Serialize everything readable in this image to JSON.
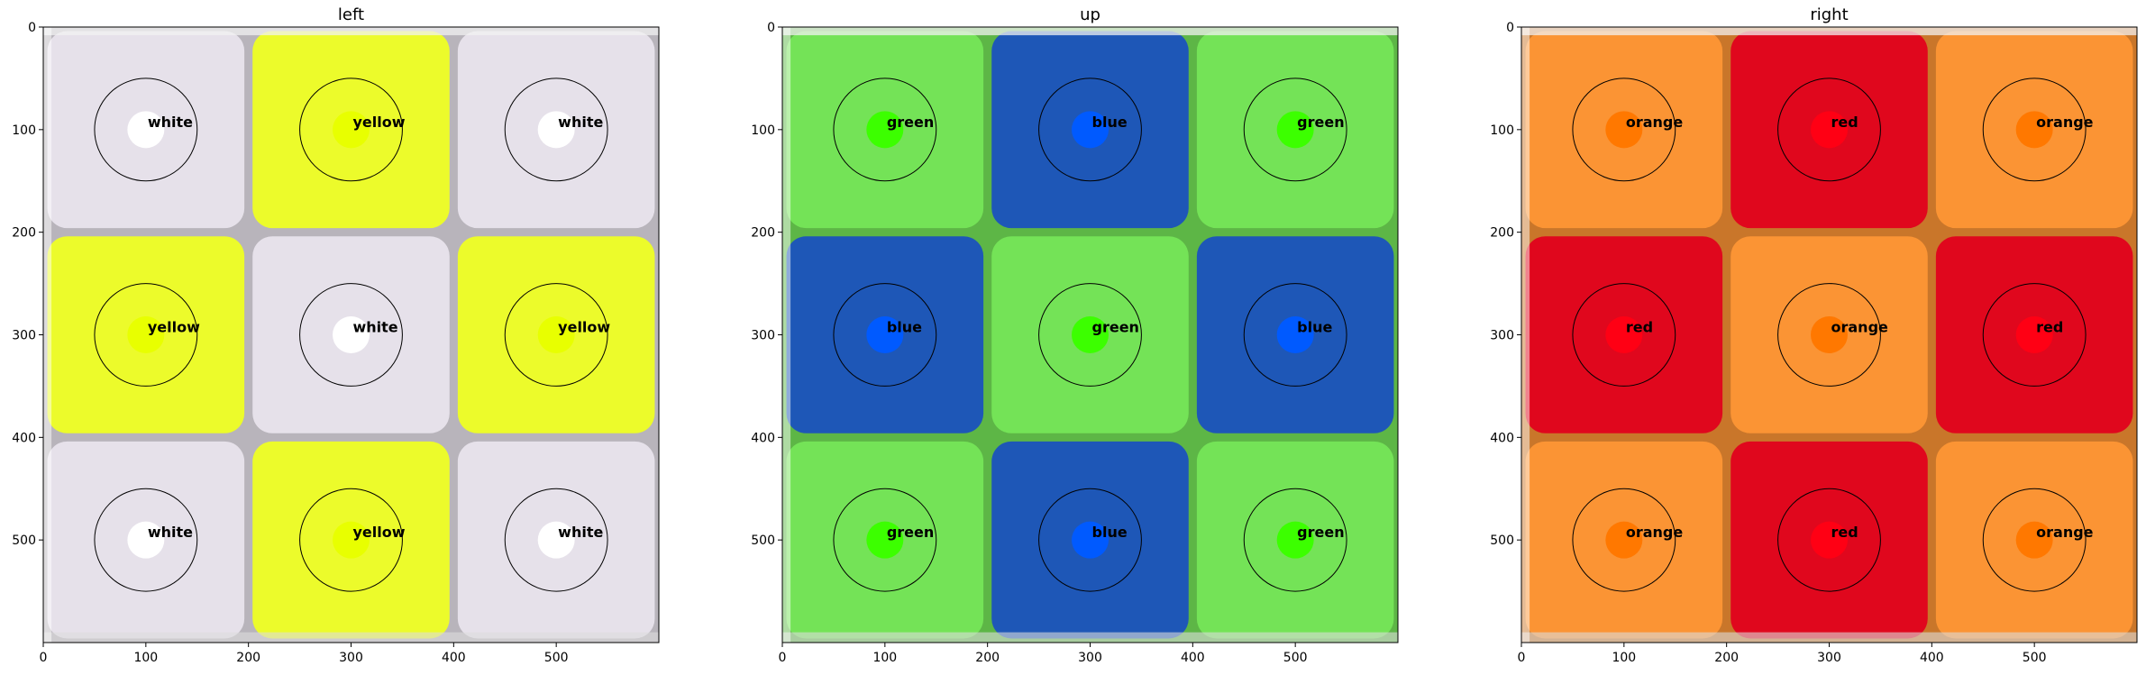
{
  "figure": {
    "background": "#ffffff"
  },
  "chart_data": [
    {
      "type": "image_grid",
      "title": "left",
      "xlim": [
        0,
        600
      ],
      "ylim": [
        600,
        0
      ],
      "xticks": [
        0,
        100,
        200,
        300,
        400,
        500
      ],
      "yticks": [
        0,
        100,
        200,
        300,
        400,
        500
      ],
      "grid": false,
      "cells": [
        {
          "row": 0,
          "col": 0,
          "x": 100,
          "y": 100,
          "label": "white",
          "sticker_color": "#e6e1ea",
          "marker_color": "#ffffff"
        },
        {
          "row": 0,
          "col": 1,
          "x": 300,
          "y": 100,
          "label": "yellow",
          "sticker_color": "#ecfb2b",
          "marker_color": "#e8ff00"
        },
        {
          "row": 0,
          "col": 2,
          "x": 500,
          "y": 100,
          "label": "white",
          "sticker_color": "#e6e1ea",
          "marker_color": "#ffffff"
        },
        {
          "row": 1,
          "col": 0,
          "x": 100,
          "y": 300,
          "label": "yellow",
          "sticker_color": "#ecfb2b",
          "marker_color": "#e8ff00"
        },
        {
          "row": 1,
          "col": 1,
          "x": 300,
          "y": 300,
          "label": "white",
          "sticker_color": "#e6e1ea",
          "marker_color": "#ffffff"
        },
        {
          "row": 1,
          "col": 2,
          "x": 500,
          "y": 300,
          "label": "yellow",
          "sticker_color": "#ecfb2b",
          "marker_color": "#e8ff00"
        },
        {
          "row": 2,
          "col": 0,
          "x": 100,
          "y": 500,
          "label": "white",
          "sticker_color": "#e6e1ea",
          "marker_color": "#ffffff"
        },
        {
          "row": 2,
          "col": 1,
          "x": 300,
          "y": 500,
          "label": "yellow",
          "sticker_color": "#ecfb2b",
          "marker_color": "#e8ff00"
        },
        {
          "row": 2,
          "col": 2,
          "x": 500,
          "y": 500,
          "label": "white",
          "sticker_color": "#e6e1ea",
          "marker_color": "#ffffff"
        }
      ]
    },
    {
      "type": "image_grid",
      "title": "up",
      "xlim": [
        0,
        600
      ],
      "ylim": [
        600,
        0
      ],
      "xticks": [
        0,
        100,
        200,
        300,
        400,
        500
      ],
      "yticks": [
        0,
        100,
        200,
        300,
        400,
        500
      ],
      "grid": false,
      "cells": [
        {
          "row": 0,
          "col": 0,
          "x": 100,
          "y": 100,
          "label": "green",
          "sticker_color": "#74e357",
          "marker_color": "#3cff00"
        },
        {
          "row": 0,
          "col": 1,
          "x": 300,
          "y": 100,
          "label": "blue",
          "sticker_color": "#1e57b7",
          "marker_color": "#005aff"
        },
        {
          "row": 0,
          "col": 2,
          "x": 500,
          "y": 100,
          "label": "green",
          "sticker_color": "#74e357",
          "marker_color": "#3cff00"
        },
        {
          "row": 1,
          "col": 0,
          "x": 100,
          "y": 300,
          "label": "blue",
          "sticker_color": "#1e57b7",
          "marker_color": "#005aff"
        },
        {
          "row": 1,
          "col": 1,
          "x": 300,
          "y": 300,
          "label": "green",
          "sticker_color": "#74e357",
          "marker_color": "#3cff00"
        },
        {
          "row": 1,
          "col": 2,
          "x": 500,
          "y": 300,
          "label": "blue",
          "sticker_color": "#1e57b7",
          "marker_color": "#005aff"
        },
        {
          "row": 2,
          "col": 0,
          "x": 100,
          "y": 500,
          "label": "green",
          "sticker_color": "#74e357",
          "marker_color": "#3cff00"
        },
        {
          "row": 2,
          "col": 1,
          "x": 300,
          "y": 500,
          "label": "blue",
          "sticker_color": "#1e57b7",
          "marker_color": "#005aff"
        },
        {
          "row": 2,
          "col": 2,
          "x": 500,
          "y": 500,
          "label": "green",
          "sticker_color": "#74e357",
          "marker_color": "#3cff00"
        }
      ]
    },
    {
      "type": "image_grid",
      "title": "right",
      "xlim": [
        0,
        600
      ],
      "ylim": [
        600,
        0
      ],
      "xticks": [
        0,
        100,
        200,
        300,
        400,
        500
      ],
      "yticks": [
        0,
        100,
        200,
        300,
        400,
        500
      ],
      "grid": false,
      "cells": [
        {
          "row": 0,
          "col": 0,
          "x": 100,
          "y": 100,
          "label": "orange",
          "sticker_color": "#fb9434",
          "marker_color": "#ff7800"
        },
        {
          "row": 0,
          "col": 1,
          "x": 300,
          "y": 100,
          "label": "red",
          "sticker_color": "#e0071d",
          "marker_color": "#ff0014"
        },
        {
          "row": 0,
          "col": 2,
          "x": 500,
          "y": 100,
          "label": "orange",
          "sticker_color": "#fb9434",
          "marker_color": "#ff7800"
        },
        {
          "row": 1,
          "col": 0,
          "x": 100,
          "y": 300,
          "label": "red",
          "sticker_color": "#e0071d",
          "marker_color": "#ff0014"
        },
        {
          "row": 1,
          "col": 1,
          "x": 300,
          "y": 300,
          "label": "orange",
          "sticker_color": "#fb9434",
          "marker_color": "#ff7800"
        },
        {
          "row": 1,
          "col": 2,
          "x": 500,
          "y": 300,
          "label": "red",
          "sticker_color": "#e0071d",
          "marker_color": "#ff0014"
        },
        {
          "row": 2,
          "col": 0,
          "x": 100,
          "y": 500,
          "label": "orange",
          "sticker_color": "#fb9434",
          "marker_color": "#ff7800"
        },
        {
          "row": 2,
          "col": 1,
          "x": 300,
          "y": 500,
          "label": "red",
          "sticker_color": "#e0071d",
          "marker_color": "#ff0014"
        },
        {
          "row": 2,
          "col": 2,
          "x": 500,
          "y": 500,
          "label": "orange",
          "sticker_color": "#fb9434",
          "marker_color": "#ff7800"
        }
      ]
    }
  ]
}
